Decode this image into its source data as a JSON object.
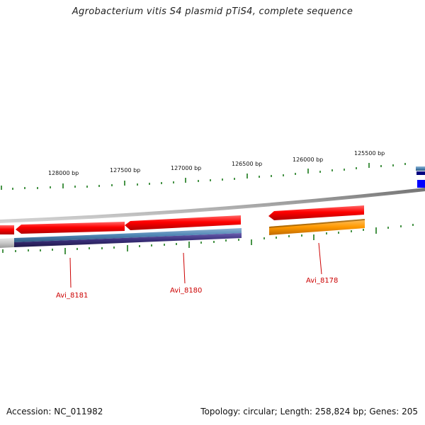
{
  "title": "Agrobacterium vitis S4 plasmid pTiS4, complete sequence",
  "footer": {
    "accession": "Accession: NC_011982",
    "summary": "Topology: circular; Length: 258,824 bp; Genes: 205"
  },
  "ticks": [
    {
      "label": "128000 bp"
    },
    {
      "label": "127500 bp"
    },
    {
      "label": "127000 bp"
    },
    {
      "label": "126500 bp"
    },
    {
      "label": "126000 bp"
    },
    {
      "label": "125500 bp"
    }
  ],
  "genes": [
    {
      "label": "Avi_8181"
    },
    {
      "label": "Avi_8180"
    },
    {
      "label": "Avi_8178"
    }
  ],
  "colors": {
    "forward_cds": "#ff0000",
    "reverse_cds_dark": "#3a2f7a",
    "steelblue": "#4f86b4",
    "orange": "#ff9900",
    "blue": "#0000ff",
    "navy": "#000080",
    "tick": "#1a7a1a",
    "backbone": "#8a8a8a",
    "gene_label": "#cc0000"
  }
}
